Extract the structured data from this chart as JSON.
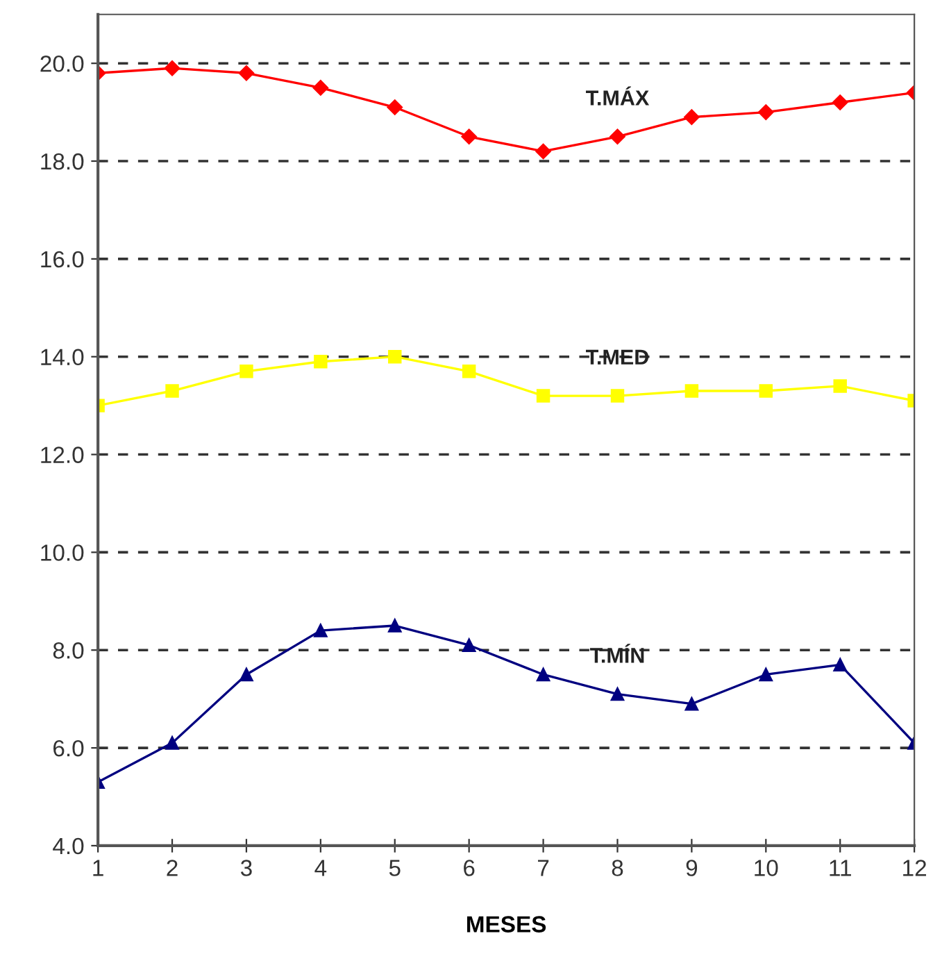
{
  "chart_data": {
    "type": "line",
    "xlabel": "MESES",
    "x": [
      1,
      2,
      3,
      4,
      5,
      6,
      7,
      8,
      9,
      10,
      11,
      12
    ],
    "xlim": [
      1,
      12
    ],
    "xticks": [
      1,
      2,
      3,
      4,
      5,
      6,
      7,
      8,
      9,
      10,
      11,
      12
    ],
    "ylim": [
      4,
      21
    ],
    "yticks": [
      {
        "value": 4,
        "label": "4.0"
      },
      {
        "value": 6,
        "label": "6.0"
      },
      {
        "value": 8,
        "label": "8.0"
      },
      {
        "value": 10,
        "label": "10.0"
      },
      {
        "value": 12,
        "label": "12.0"
      },
      {
        "value": 14,
        "label": "14.0"
      },
      {
        "value": 16,
        "label": "16.0"
      },
      {
        "value": 18,
        "label": "18.0"
      },
      {
        "value": 20,
        "label": "20.0"
      }
    ],
    "grid": "y",
    "legend": false,
    "series": [
      {
        "name": "T.MÁX",
        "color": "#ff0000",
        "marker": "diamond",
        "values": [
          19.8,
          19.9,
          19.8,
          19.5,
          19.1,
          18.5,
          18.2,
          18.5,
          18.9,
          19.0,
          19.2,
          19.4
        ]
      },
      {
        "name": "T.MED",
        "color": "#ffff00",
        "marker": "square",
        "values": [
          13.0,
          13.3,
          13.7,
          13.9,
          14.0,
          13.7,
          13.2,
          13.2,
          13.3,
          13.3,
          13.4,
          13.1
        ]
      },
      {
        "name": "T.MÍN",
        "color": "#000080",
        "marker": "triangle",
        "values": [
          5.3,
          6.1,
          7.5,
          8.4,
          8.5,
          8.1,
          7.5,
          7.1,
          6.9,
          7.5,
          7.7,
          6.1
        ]
      }
    ]
  }
}
